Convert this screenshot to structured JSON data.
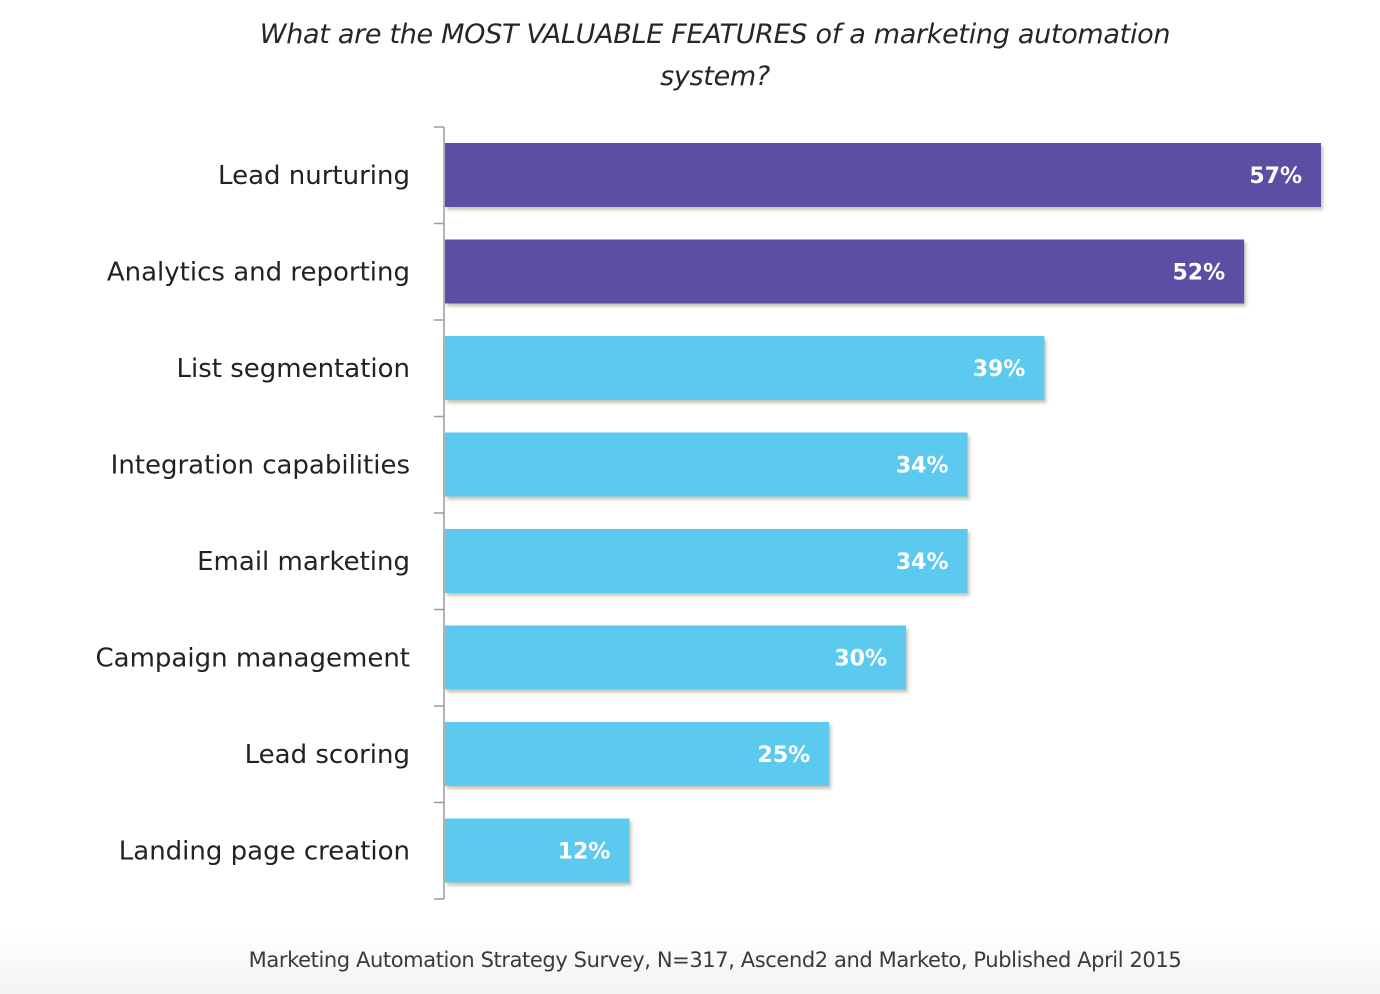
{
  "chart_data": {
    "type": "bar",
    "orientation": "horizontal",
    "title": "What are the MOST VALUABLE FEATURES of a marketing automation system?",
    "title_lines": [
      "What are the MOST VALUABLE FEATURES of a marketing automation",
      "system?"
    ],
    "categories": [
      "Lead nurturing",
      "Analytics and reporting",
      "List segmentation",
      "Integration capabilities",
      "Email marketing",
      "Campaign management",
      "Lead scoring",
      "Landing page creation"
    ],
    "values": [
      57,
      52,
      39,
      34,
      34,
      30,
      25,
      12
    ],
    "value_labels": [
      "57%",
      "52%",
      "39%",
      "34%",
      "34%",
      "30%",
      "25%",
      "12%"
    ],
    "highlight_count": 2,
    "colors": {
      "highlight": "#5a50a3",
      "default": "#5bc9ee",
      "axis": "#9a9a9a"
    },
    "xlim": [
      0,
      60
    ],
    "xlabel": "",
    "ylabel": "",
    "grid": false,
    "legend": "none",
    "source": "Marketing Automation Strategy Survey, N=317, Ascend2 and Marketo, Published April 2015"
  }
}
